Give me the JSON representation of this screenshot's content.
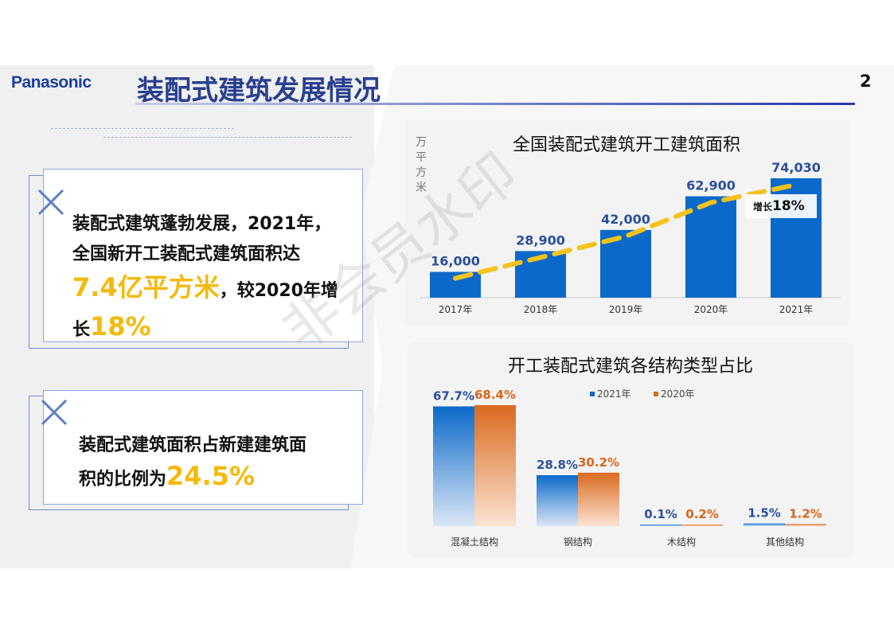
{
  "header": {
    "logo": "Panasonic",
    "title": "装配式建筑发展情况",
    "page_number": "2"
  },
  "card1": {
    "line1": "装配式建筑蓬勃发展，2021年，",
    "line2": "全国新开工装配式建筑面积达",
    "highlight1": "7.4亿平方米",
    "line3_rest": "，较2020年增",
    "line4_pre": "长",
    "highlight2": "18%"
  },
  "card2": {
    "line1": "装配式建筑面积占新建建筑面",
    "line2_pre": "积的比例为",
    "highlight": "24.5%"
  },
  "watermark": "非会员水印",
  "colors": {
    "brand_blue": "#1a3f9c",
    "bar_blue": "#0b6ac9",
    "bar_orange": "#d96a1e",
    "highlight_yellow": "#f4b90a",
    "trend_dash": "#f4c21a"
  },
  "chart_data": [
    {
      "type": "bar",
      "title": "全国装配式建筑开工建筑面积",
      "ylabel": "万平方米",
      "categories": [
        "2017年",
        "2018年",
        "2019年",
        "2020年",
        "2021年"
      ],
      "values": [
        16000,
        28900,
        42000,
        62900,
        74030
      ],
      "value_labels": [
        "16,000",
        "28,900",
        "42,000",
        "62,900",
        "74,030"
      ],
      "trend_line": true,
      "annotation": {
        "prefix": "增长",
        "value": "18%"
      }
    },
    {
      "type": "bar",
      "title": "开工装配式建筑各结构类型占比",
      "categories": [
        "混凝土结构",
        "钢结构",
        "木结构",
        "其他结构"
      ],
      "series": [
        {
          "name": "2021年",
          "values": [
            67.7,
            28.8,
            0.1,
            1.5
          ],
          "labels": [
            "67.7%",
            "28.8%",
            "0.1%",
            "1.5%"
          ]
        },
        {
          "name": "2020年",
          "values": [
            68.4,
            30.2,
            0.2,
            1.2
          ],
          "labels": [
            "68.4%",
            "30.2%",
            "0.2%",
            "1.2%"
          ]
        }
      ],
      "legend": "top"
    }
  ]
}
